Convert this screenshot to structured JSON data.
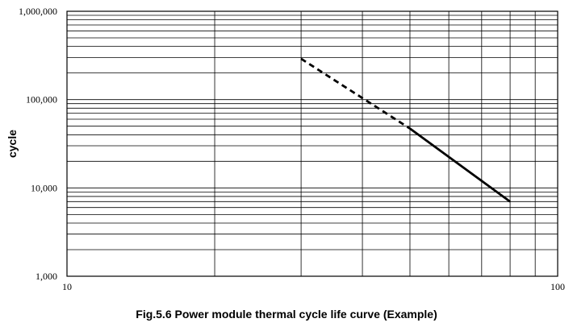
{
  "chart_data": {
    "type": "line",
    "title": "Fig.5.6 Power module thermal cycle life curve (Example)",
    "xlabel": "",
    "ylabel": "cycle",
    "x_scale": "log",
    "y_scale": "log",
    "xlim": [
      10,
      100
    ],
    "ylim": [
      1000,
      1000000
    ],
    "x_tick_labels": [
      "10",
      "100"
    ],
    "y_tick_labels": [
      "1,000",
      "10,000",
      "100,000",
      "1,000,000"
    ],
    "grid": true,
    "series": [
      {
        "style": "dashed",
        "x": [
          30,
          50
        ],
        "y": [
          290000,
          47000
        ]
      },
      {
        "style": "solid",
        "x": [
          50,
          80
        ],
        "y": [
          47000,
          7000
        ]
      }
    ]
  }
}
